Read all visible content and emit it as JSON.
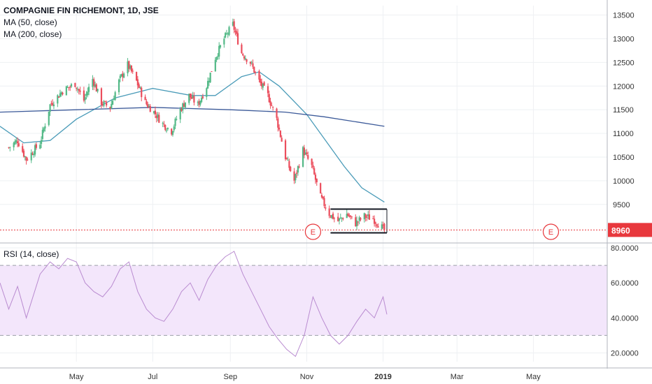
{
  "header": {
    "title": "COMPAGNIE FIN RICHEMONT, 1D, JSE",
    "indicators": [
      "MA (50, close)",
      "MA (200, close)"
    ]
  },
  "rsi_panel": {
    "title": "RSI (14, close)"
  },
  "last_price_label": "8960",
  "earnings_marker_label": "E",
  "colors": {
    "up": "#53b987",
    "down": "#eb4d5c",
    "ma50": "#4a9bb8",
    "ma200": "#3c5a99",
    "rsi_line": "#b98bd0",
    "rsi_band": "#f3e6fb",
    "last_price": "#e8383d",
    "annotation": "#131722"
  },
  "chart_data": [
    {
      "type": "candlestick",
      "title": "COMPAGNIE FIN RICHEMONT, 1D, JSE",
      "ylim": [
        8700,
        13700
      ],
      "yticks": [
        "13500",
        "13000",
        "12500",
        "12000",
        "11500",
        "11000",
        "10500",
        "10000",
        "9500"
      ],
      "x_tick_labels": [
        "May",
        "Jul",
        "Sep",
        "Nov",
        "2019",
        "Mar",
        "May"
      ],
      "last_price": 8960,
      "ohlc_anchors": [
        [
          "2018-03-08",
          10700
        ],
        [
          "2018-03-15",
          10850
        ],
        [
          "2018-03-22",
          10450
        ],
        [
          "2018-04-02",
          10800
        ],
        [
          "2018-04-10",
          11600
        ],
        [
          "2018-04-20",
          11900
        ],
        [
          "2018-04-30",
          12050
        ],
        [
          "2018-05-07",
          11700
        ],
        [
          "2018-05-14",
          12150
        ],
        [
          "2018-05-21",
          11650
        ],
        [
          "2018-05-28",
          11550
        ],
        [
          "2018-06-04",
          12100
        ],
        [
          "2018-06-11",
          12450
        ],
        [
          "2018-06-18",
          12100
        ],
        [
          "2018-06-25",
          11650
        ],
        [
          "2018-07-02",
          11450
        ],
        [
          "2018-07-09",
          11200
        ],
        [
          "2018-07-16",
          11050
        ],
        [
          "2018-07-23",
          11500
        ],
        [
          "2018-07-30",
          11800
        ],
        [
          "2018-08-06",
          11600
        ],
        [
          "2018-08-13",
          12000
        ],
        [
          "2018-08-20",
          12600
        ],
        [
          "2018-08-27",
          13000
        ],
        [
          "2018-09-03",
          13300
        ],
        [
          "2018-09-10",
          12700
        ],
        [
          "2018-09-17",
          12500
        ],
        [
          "2018-09-24",
          12100
        ],
        [
          "2018-10-01",
          11800
        ],
        [
          "2018-10-08",
          11300
        ],
        [
          "2018-10-15",
          10500
        ],
        [
          "2018-10-22",
          10000
        ],
        [
          "2018-10-29",
          10650
        ],
        [
          "2018-11-05",
          10300
        ],
        [
          "2018-11-12",
          9650
        ],
        [
          "2018-11-19",
          9300
        ],
        [
          "2018-11-26",
          9150
        ],
        [
          "2018-12-03",
          9300
        ],
        [
          "2018-12-10",
          9100
        ],
        [
          "2018-12-17",
          9250
        ],
        [
          "2018-12-24",
          9200
        ],
        [
          "2019-01-02",
          8960
        ]
      ],
      "series": [
        {
          "name": "MA (50, close)",
          "points": [
            [
              "2018-03-01",
              11150
            ],
            [
              "2018-03-20",
              10800
            ],
            [
              "2018-04-10",
              10850
            ],
            [
              "2018-05-01",
              11300
            ],
            [
              "2018-06-01",
              11750
            ],
            [
              "2018-07-01",
              11950
            ],
            [
              "2018-08-01",
              11800
            ],
            [
              "2018-08-20",
              11800
            ],
            [
              "2018-09-10",
              12200
            ],
            [
              "2018-09-24",
              12300
            ],
            [
              "2018-10-10",
              12000
            ],
            [
              "2018-11-01",
              11400
            ],
            [
              "2018-12-01",
              10300
            ],
            [
              "2018-12-15",
              9850
            ],
            [
              "2019-01-02",
              9550
            ]
          ]
        },
        {
          "name": "MA (200, close)",
          "points": [
            [
              "2018-03-01",
              11450
            ],
            [
              "2018-05-01",
              11500
            ],
            [
              "2018-07-01",
              11550
            ],
            [
              "2018-09-01",
              11500
            ],
            [
              "2018-10-15",
              11450
            ],
            [
              "2018-11-15",
              11350
            ],
            [
              "2019-01-02",
              11150
            ]
          ]
        }
      ],
      "annotations": [
        {
          "type": "range_box",
          "from": "2018-11-20",
          "to": "2019-01-04",
          "top": 9400,
          "bottom": 8900
        },
        {
          "type": "earnings_marker",
          "date": "2018-11-06"
        },
        {
          "type": "earnings_marker",
          "date": "2019-05-15"
        }
      ]
    },
    {
      "type": "line",
      "title": "RSI (14, close)",
      "ylim": [
        15,
        82
      ],
      "yticks": [
        "80.0000",
        "60.0000",
        "40.0000",
        "20.0000"
      ],
      "bands": {
        "upper": 70,
        "lower": 30
      },
      "series": [
        {
          "name": "RSI (14, close)",
          "points": [
            [
              "2018-03-01",
              60
            ],
            [
              "2018-03-08",
              45
            ],
            [
              "2018-03-15",
              58
            ],
            [
              "2018-03-22",
              40
            ],
            [
              "2018-04-02",
              65
            ],
            [
              "2018-04-10",
              72
            ],
            [
              "2018-04-17",
              68
            ],
            [
              "2018-04-24",
              74
            ],
            [
              "2018-05-01",
              72
            ],
            [
              "2018-05-08",
              60
            ],
            [
              "2018-05-15",
              55
            ],
            [
              "2018-05-22",
              52
            ],
            [
              "2018-05-29",
              58
            ],
            [
              "2018-06-05",
              68
            ],
            [
              "2018-06-12",
              72
            ],
            [
              "2018-06-19",
              55
            ],
            [
              "2018-06-26",
              45
            ],
            [
              "2018-07-03",
              40
            ],
            [
              "2018-07-10",
              38
            ],
            [
              "2018-07-17",
              45
            ],
            [
              "2018-07-24",
              55
            ],
            [
              "2018-07-31",
              60
            ],
            [
              "2018-08-07",
              50
            ],
            [
              "2018-08-14",
              62
            ],
            [
              "2018-08-21",
              70
            ],
            [
              "2018-08-28",
              75
            ],
            [
              "2018-09-04",
              78
            ],
            [
              "2018-09-11",
              65
            ],
            [
              "2018-09-18",
              55
            ],
            [
              "2018-09-25",
              45
            ],
            [
              "2018-10-02",
              35
            ],
            [
              "2018-10-09",
              28
            ],
            [
              "2018-10-16",
              22
            ],
            [
              "2018-10-23",
              18
            ],
            [
              "2018-10-30",
              30
            ],
            [
              "2018-11-06",
              52
            ],
            [
              "2018-11-13",
              40
            ],
            [
              "2018-11-20",
              30
            ],
            [
              "2018-11-27",
              25
            ],
            [
              "2018-12-04",
              30
            ],
            [
              "2018-12-11",
              38
            ],
            [
              "2018-12-18",
              45
            ],
            [
              "2018-12-25",
              40
            ],
            [
              "2019-01-01",
              52
            ],
            [
              "2019-01-04",
              42
            ]
          ]
        }
      ]
    }
  ]
}
